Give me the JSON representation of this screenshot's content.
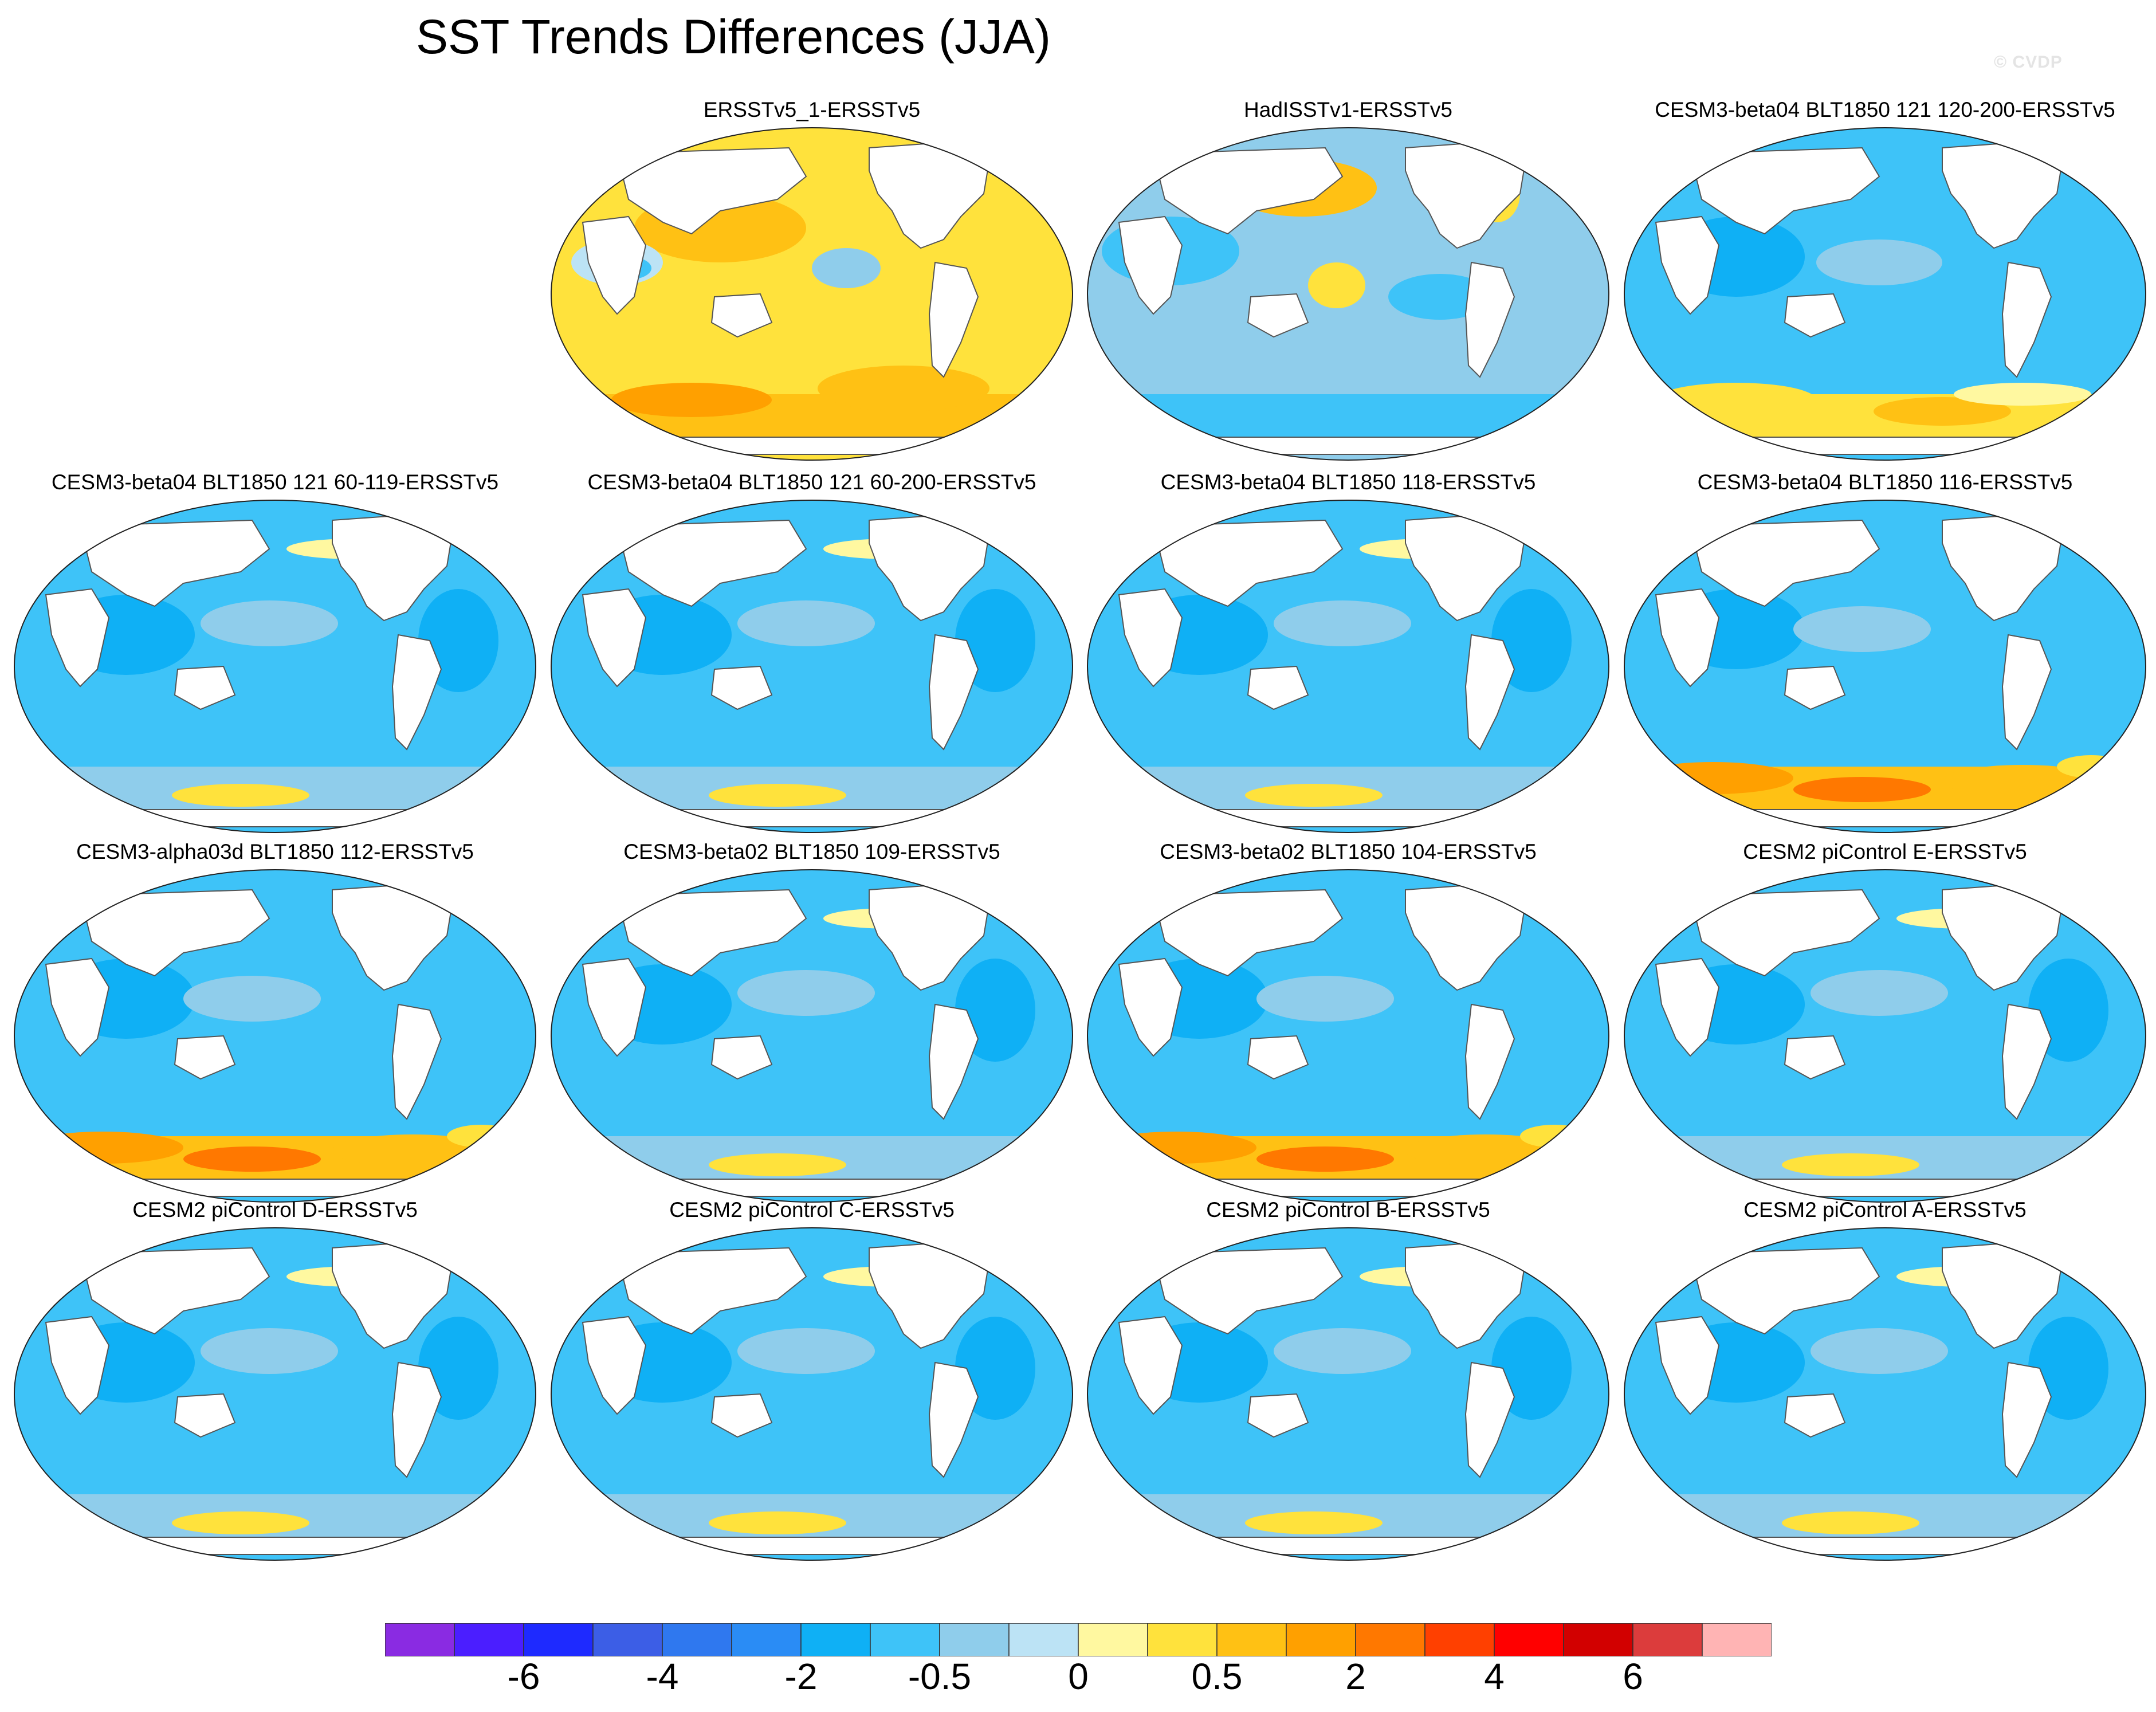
{
  "title": "SST Trends Differences (JJA)",
  "watermark": "© CVDP",
  "panels": [
    {
      "title": "ERSSTv5_1-ERSSTv5",
      "pattern": "warm-dominant"
    },
    {
      "title": "HadISSTv1-ERSSTv5",
      "pattern": "mixed"
    },
    {
      "title": "CESM3-beta04 BLT1850 121 120-200-ERSSTv5",
      "pattern": "cool-warm-south"
    },
    {
      "title": "CESM3-beta04 BLT1850 121 60-119-ERSSTv5",
      "pattern": "cool"
    },
    {
      "title": "CESM3-beta04 BLT1850 121 60-200-ERSSTv5",
      "pattern": "cool"
    },
    {
      "title": "CESM3-beta04 BLT1850 118-ERSSTv5",
      "pattern": "cool"
    },
    {
      "title": "CESM3-beta04 BLT1850 116-ERSSTv5",
      "pattern": "cool-strong-south"
    },
    {
      "title": "CESM3-alpha03d BLT1850 112-ERSSTv5",
      "pattern": "cool-strong-south"
    },
    {
      "title": "CESM3-beta02 BLT1850 109-ERSSTv5",
      "pattern": "cool"
    },
    {
      "title": "CESM3-beta02 BLT1850 104-ERSSTv5",
      "pattern": "cool-strong-south"
    },
    {
      "title": "CESM2 piControl E-ERSSTv5",
      "pattern": "cool"
    },
    {
      "title": "CESM2 piControl D-ERSSTv5",
      "pattern": "cool"
    },
    {
      "title": "CESM2 piControl C-ERSSTv5",
      "pattern": "cool"
    },
    {
      "title": "CESM2 piControl B-ERSSTv5",
      "pattern": "cool"
    },
    {
      "title": "CESM2 piControl A-ERSSTv5",
      "pattern": "cool"
    }
  ],
  "colorbar": {
    "colors": [
      "#8a2be2",
      "#4b1eff",
      "#1e2aff",
      "#3c5ee6",
      "#2f78ef",
      "#2a8cf5",
      "#0fb0f5",
      "#3ec3f8",
      "#8fcdeb",
      "#bce3f5",
      "#fff8a0",
      "#ffe23c",
      "#ffc114",
      "#ffa000",
      "#ff7800",
      "#ff4000",
      "#ff0000",
      "#d20000",
      "#dc3c3c",
      "#ffb4b4"
    ],
    "labels": [
      {
        "text": "-6",
        "boundary": 2
      },
      {
        "text": "-4",
        "boundary": 4
      },
      {
        "text": "-2",
        "boundary": 6
      },
      {
        "text": "-0.5",
        "boundary": 8
      },
      {
        "text": "0",
        "boundary": 10
      },
      {
        "text": "0.5",
        "boundary": 12
      },
      {
        "text": "2",
        "boundary": 14
      },
      {
        "text": "4",
        "boundary": 16
      },
      {
        "text": "6",
        "boundary": 18
      }
    ]
  }
}
